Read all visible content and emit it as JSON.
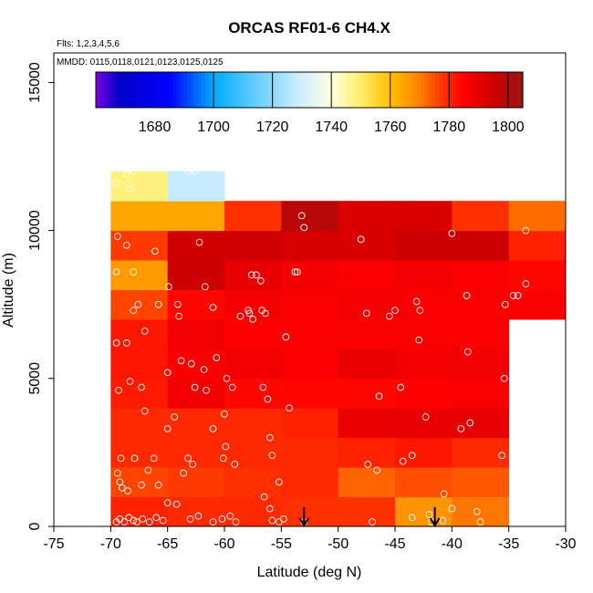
{
  "chart_data": {
    "type": "heatmap",
    "title": "ORCAS RF01-6 CH4.X",
    "xlabel": "Latitude (deg N)",
    "ylabel": "Altitude (m)",
    "notes": [
      "Flts: 1,2,3,4,5,6",
      "MMDD: 0115,0118,0121,0123,0125,0125"
    ],
    "xlim": [
      -75,
      -30
    ],
    "ylim": [
      0,
      16000
    ],
    "x_ticks": [
      -75,
      -70,
      -65,
      -60,
      -55,
      -50,
      -45,
      -40,
      -35,
      -30
    ],
    "y_ticks": [
      0,
      5000,
      10000,
      15000
    ],
    "colorbar": {
      "range": [
        1660,
        1805
      ],
      "ticks": [
        1680,
        1700,
        1720,
        1740,
        1760,
        1780,
        1800
      ],
      "stops": [
        [
          1660,
          "#7a00e6"
        ],
        [
          1668,
          "#0000c8"
        ],
        [
          1685,
          "#0000ff"
        ],
        [
          1700,
          "#00aaff"
        ],
        [
          1712,
          "#55c8ff"
        ],
        [
          1728,
          "#c8ecff"
        ],
        [
          1740,
          "#ffffe0"
        ],
        [
          1750,
          "#ffee66"
        ],
        [
          1760,
          "#ffc000"
        ],
        [
          1770,
          "#ff8000"
        ],
        [
          1778,
          "#ff3000"
        ],
        [
          1785,
          "#ff0000"
        ],
        [
          1795,
          "#cc0000"
        ],
        [
          1805,
          "#9a1515"
        ]
      ]
    },
    "cells": {
      "x_edges": [
        -70,
        -65,
        -60,
        -55,
        -50,
        -45,
        -40,
        -35,
        -30
      ],
      "y_edges": [
        0,
        1000,
        2000,
        3000,
        4000,
        5000,
        6000,
        7000,
        8000,
        9000,
        10000,
        11000,
        12000
      ],
      "values": [
        [
          1780,
          1779,
          1779,
          1778,
          1778,
          1767,
          1771,
          null
        ],
        [
          1776,
          1777,
          1778,
          1779,
          1773,
          1775,
          1774,
          null
        ],
        [
          1779,
          1779,
          1779,
          1779,
          1780,
          1782,
          1779,
          null
        ],
        [
          1779,
          1779,
          1779,
          1780,
          1789,
          1790,
          1790,
          null
        ],
        [
          1781,
          1788,
          1784,
          1784,
          1784,
          1785,
          1786,
          null
        ],
        [
          1782,
          1786,
          1788,
          1786,
          1789,
          1787,
          1788,
          null
        ],
        [
          1782,
          1788,
          1785,
          1786,
          1786,
          1786,
          1786,
          null
        ],
        [
          1776,
          1784,
          1787,
          1786,
          1787,
          1786,
          1786,
          1786
        ],
        [
          1766,
          1795,
          1790,
          1787,
          1786,
          1787,
          1786,
          1784
        ],
        [
          1777,
          1794,
          1794,
          1793,
          1792,
          1795,
          1795,
          1780
        ],
        [
          1764,
          1764,
          1778,
          1799,
          1792,
          1792,
          1778,
          1772
        ],
        [
          1748,
          1728,
          null,
          null,
          null,
          null,
          null,
          null
        ]
      ]
    },
    "sample_points": [
      [
        -69.5,
        150
      ],
      [
        -69.2,
        250
      ],
      [
        -68.8,
        150
      ],
      [
        -68.4,
        300
      ],
      [
        -68.0,
        200
      ],
      [
        -67.7,
        150
      ],
      [
        -67.2,
        250
      ],
      [
        -66.6,
        150
      ],
      [
        -66.0,
        300
      ],
      [
        -65.4,
        200
      ],
      [
        -64.2,
        750
      ],
      [
        -63.0,
        250
      ],
      [
        -62.3,
        350
      ],
      [
        -61.0,
        150
      ],
      [
        -60.2,
        250
      ],
      [
        -59.5,
        350
      ],
      [
        -59.0,
        150
      ],
      [
        -55.8,
        200
      ],
      [
        -55.2,
        150
      ],
      [
        -54.8,
        250
      ],
      [
        -53.0,
        150
      ],
      [
        -47.0,
        150
      ],
      [
        -43.5,
        300
      ],
      [
        -42.0,
        400
      ],
      [
        -41.8,
        150
      ],
      [
        -40.8,
        200
      ],
      [
        -40.0,
        600
      ],
      [
        -37.8,
        500
      ],
      [
        -37.5,
        150
      ],
      [
        -69.4,
        1800
      ],
      [
        -69.2,
        1500
      ],
      [
        -69.0,
        1300
      ],
      [
        -69.1,
        2300
      ],
      [
        -67.9,
        2300
      ],
      [
        -68.5,
        1200
      ],
      [
        -67.3,
        1400
      ],
      [
        -66.7,
        1900
      ],
      [
        -66.2,
        2300
      ],
      [
        -65.8,
        1400
      ],
      [
        -65.0,
        800
      ],
      [
        -63.6,
        1800
      ],
      [
        -63.2,
        2300
      ],
      [
        -62.8,
        2100
      ],
      [
        -60.1,
        2300
      ],
      [
        -59.1,
        2100
      ],
      [
        -56.5,
        1000
      ],
      [
        -56.0,
        600
      ],
      [
        -55.8,
        2400
      ],
      [
        -55.2,
        1500
      ],
      [
        -47.4,
        2100
      ],
      [
        -46.6,
        1900
      ],
      [
        -44.3,
        2200
      ],
      [
        -43.5,
        2400
      ],
      [
        -40.7,
        1100
      ],
      [
        -35.6,
        2400
      ],
      [
        -67.0,
        3900
      ],
      [
        -65.0,
        3300
      ],
      [
        -64.4,
        3700
      ],
      [
        -61.0,
        3300
      ],
      [
        -60.0,
        3800
      ],
      [
        -59.9,
        2700
      ],
      [
        -56.0,
        3000
      ],
      [
        -54.3,
        4000
      ],
      [
        -42.3,
        3700
      ],
      [
        -39.2,
        3300
      ],
      [
        -38.4,
        3500
      ],
      [
        -46.4,
        4400
      ],
      [
        -69.3,
        4600
      ],
      [
        -68.3,
        4900
      ],
      [
        -67.3,
        4700
      ],
      [
        -65.0,
        5200
      ],
      [
        -63.8,
        5600
      ],
      [
        -62.9,
        5500
      ],
      [
        -61.8,
        5300
      ],
      [
        -62.6,
        4700
      ],
      [
        -61.6,
        4600
      ],
      [
        -60.7,
        5700
      ],
      [
        -59.8,
        5000
      ],
      [
        -59.3,
        4700
      ],
      [
        -56.6,
        4700
      ],
      [
        -56.2,
        4300
      ],
      [
        -44.5,
        4700
      ],
      [
        -35.4,
        5000
      ],
      [
        -69.5,
        6200
      ],
      [
        -68.6,
        6200
      ],
      [
        -67.0,
        6600
      ],
      [
        -54.6,
        6400
      ],
      [
        -42.9,
        6300
      ],
      [
        -38.6,
        5900
      ],
      [
        -67.6,
        7500
      ],
      [
        -68.0,
        7300
      ],
      [
        -65.8,
        7500
      ],
      [
        -64.1,
        7500
      ],
      [
        -64.0,
        7100
      ],
      [
        -61.0,
        7400
      ],
      [
        -58.6,
        7100
      ],
      [
        -57.9,
        7300
      ],
      [
        -57.8,
        7200
      ],
      [
        -57.5,
        7000
      ],
      [
        -56.7,
        7300
      ],
      [
        -56.4,
        7200
      ],
      [
        -47.5,
        7200
      ],
      [
        -45.5,
        7100
      ],
      [
        -45.0,
        7300
      ],
      [
        -43.1,
        7600
      ],
      [
        -42.8,
        7300
      ],
      [
        -38.7,
        7800
      ],
      [
        -35.3,
        7500
      ],
      [
        -34.6,
        7800
      ],
      [
        -34.2,
        7800
      ],
      [
        -69.5,
        8600
      ],
      [
        -68.0,
        8600
      ],
      [
        -66.1,
        9300
      ],
      [
        -64.9,
        8100
      ],
      [
        -61.7,
        8100
      ],
      [
        -57.6,
        8500
      ],
      [
        -57.2,
        8500
      ],
      [
        -56.8,
        8300
      ],
      [
        -53.8,
        8600
      ],
      [
        -53.6,
        8600
      ],
      [
        -33.5,
        8200
      ],
      [
        -69.4,
        9800
      ],
      [
        -68.6,
        9500
      ],
      [
        -62.2,
        9600
      ],
      [
        -53.2,
        10500
      ],
      [
        -53.0,
        10100
      ],
      [
        -48.0,
        9700
      ],
      [
        -40.0,
        9900
      ],
      [
        -33.5,
        10000
      ],
      [
        -69.6,
        11600
      ],
      [
        -68.6,
        11900
      ],
      [
        -68.3,
        11400
      ],
      [
        -68.0,
        12000
      ],
      [
        -63.2,
        12000
      ],
      [
        -62.6,
        12000
      ]
    ],
    "markers": {
      "type": "arrow",
      "x": [
        -53,
        -41.5
      ]
    }
  }
}
